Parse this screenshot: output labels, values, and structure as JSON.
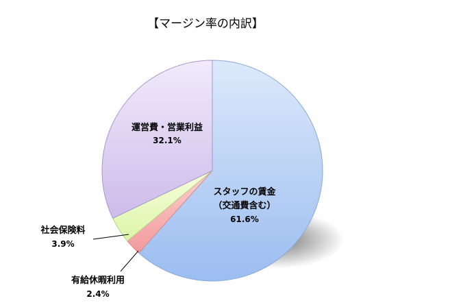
{
  "chart_data": {
    "type": "pie",
    "title": "【マージン率の内訳】",
    "slices": [
      {
        "label_lines": [
          "スタッフの賃金",
          "（交通費含む）"
        ],
        "value": 61.6,
        "value_label": "61.6%",
        "color_top": "#dde9fb",
        "color_bottom": "#9bbdf0",
        "stroke": "#88a8d8"
      },
      {
        "label_lines": [
          "有給休暇利用"
        ],
        "value": 2.4,
        "value_label": "2.4%",
        "color_top": "#ffd0d0",
        "color_bottom": "#f09a9a",
        "stroke": "#d88a8a"
      },
      {
        "label_lines": [
          "社会保険料"
        ],
        "value": 3.9,
        "value_label": "3.9%",
        "color_top": "#f6ffdc",
        "color_bottom": "#dcf5a8",
        "stroke": "#b8d08a"
      },
      {
        "label_lines": [
          "運営費・営業利益"
        ],
        "value": 32.1,
        "value_label": "32.1%",
        "color_top": "#f1ebfb",
        "color_bottom": "#cdbbea",
        "stroke": "#a896cc"
      }
    ],
    "legend": "none",
    "start": "12 o'clock",
    "direction": "clockwise"
  }
}
